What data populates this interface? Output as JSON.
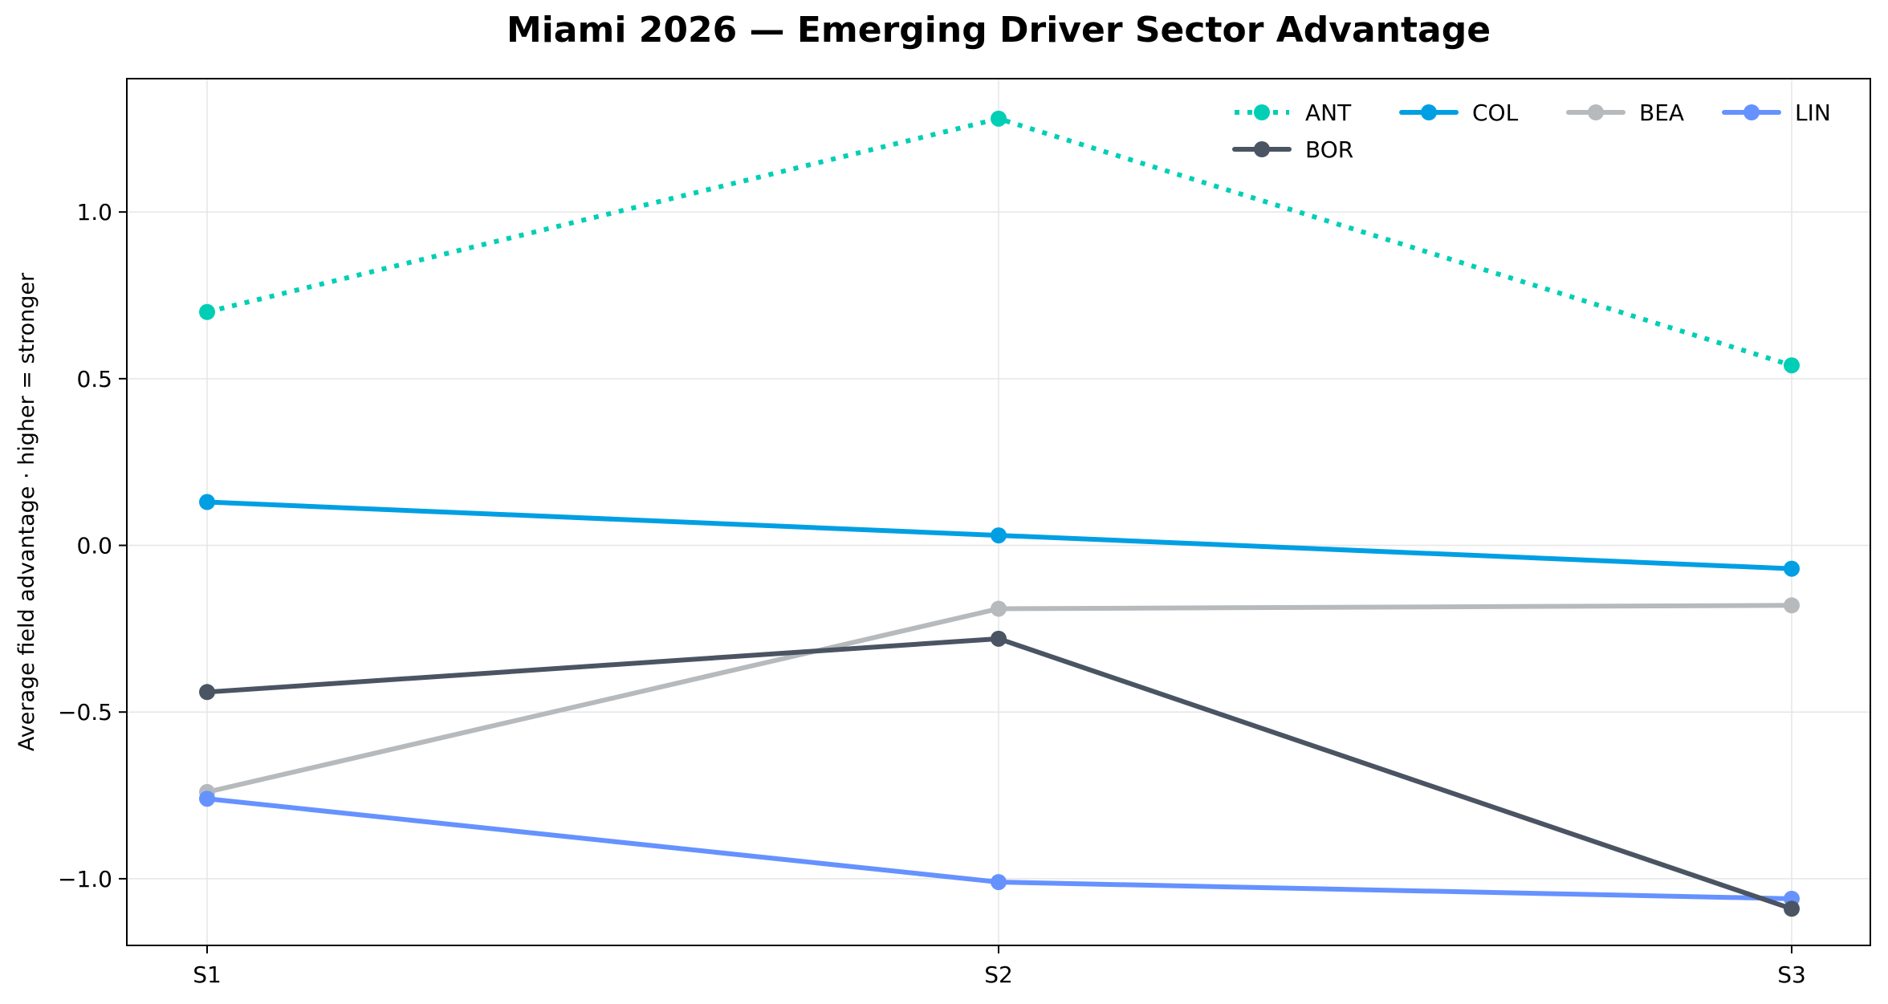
{
  "chart_data": {
    "type": "line",
    "title": "Miami 2026 — Emerging Driver Sector Advantage",
    "xlabel": "",
    "ylabel": "Average field advantage · higher = stronger",
    "categories": [
      "S1",
      "S2",
      "S3"
    ],
    "ylim": [
      -1.2,
      1.4
    ],
    "yticks": [
      -1.0,
      -0.5,
      0.0,
      0.5,
      1.0
    ],
    "ytick_labels": [
      "−1.0",
      "−0.5",
      "0.0",
      "0.5",
      "1.0"
    ],
    "grid": true,
    "legend_position": "top-right",
    "series": [
      {
        "name": "ANT",
        "values": [
          0.7,
          1.28,
          0.54
        ],
        "color": "#00CFB5",
        "style": "dotted"
      },
      {
        "name": "COL",
        "values": [
          0.13,
          0.03,
          -0.07
        ],
        "color": "#009FE3",
        "style": "solid"
      },
      {
        "name": "BEA",
        "values": [
          -0.74,
          -0.19,
          -0.18
        ],
        "color": "#B6BABD",
        "style": "solid"
      },
      {
        "name": "LIN",
        "values": [
          -0.76,
          -1.01,
          -1.06
        ],
        "color": "#6692FF",
        "style": "solid"
      },
      {
        "name": "BOR",
        "values": [
          -0.44,
          -0.28,
          -1.09
        ],
        "color": "#4A5462",
        "style": "solid"
      }
    ]
  }
}
